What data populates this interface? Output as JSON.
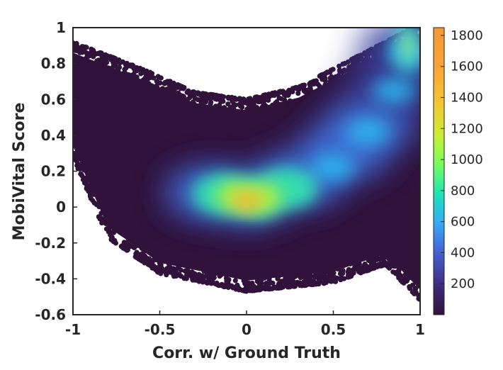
{
  "chart_data": {
    "type": "heatmap",
    "subtype": "density-scatter",
    "title": "",
    "xlabel": "Corr. w/ Ground Truth",
    "ylabel": "MobiVital Score",
    "xlim": [
      -1,
      1
    ],
    "ylim": [
      -0.6,
      1
    ],
    "x_ticks": [
      "-1",
      "-0.5",
      "0",
      "0.5",
      "1"
    ],
    "y_ticks": [
      "-0.6",
      "-0.4",
      "-0.2",
      "0",
      "0.2",
      "0.4",
      "0.6",
      "0.8",
      "1"
    ],
    "grid": false,
    "colorbar": {
      "range": [
        0,
        1850
      ],
      "ticks": [
        "200",
        "400",
        "600",
        "800",
        "1000",
        "1200",
        "1400",
        "1600",
        "1800"
      ],
      "colormap": "turbo-like (dark purple to orange)",
      "label": ""
    },
    "density_peak": {
      "x": 0.0,
      "y": 0.03,
      "count": 1850
    },
    "secondary_peak": {
      "x": 0.93,
      "y": 0.9,
      "count": 900
    },
    "ridge_trend": [
      {
        "x": -0.2,
        "y": 0.08
      },
      {
        "x": 0.0,
        "y": 0.05
      },
      {
        "x": 0.3,
        "y": 0.15
      },
      {
        "x": 0.55,
        "y": 0.3
      },
      {
        "x": 0.7,
        "y": 0.45
      },
      {
        "x": 0.85,
        "y": 0.68
      },
      {
        "x": 0.93,
        "y": 0.9
      }
    ],
    "envelope_upper": [
      {
        "x": -1,
        "y": 0.9
      },
      {
        "x": -0.6,
        "y": 0.75
      },
      {
        "x": -0.3,
        "y": 0.62
      },
      {
        "x": 0.0,
        "y": 0.58
      },
      {
        "x": 0.3,
        "y": 0.65
      },
      {
        "x": 0.6,
        "y": 0.8
      },
      {
        "x": 1,
        "y": 1
      }
    ],
    "envelope_lower": [
      {
        "x": -1,
        "y": 0.3
      },
      {
        "x": -0.8,
        "y": -0.15
      },
      {
        "x": -0.5,
        "y": -0.35
      },
      {
        "x": 0.0,
        "y": -0.45
      },
      {
        "x": 0.5,
        "y": -0.4
      },
      {
        "x": 0.8,
        "y": -0.3
      },
      {
        "x": 1,
        "y": -0.5
      }
    ],
    "colors": {
      "low": "#30123b",
      "mid": "#28bbec",
      "high": "#fba238",
      "axis": "#262626"
    }
  }
}
